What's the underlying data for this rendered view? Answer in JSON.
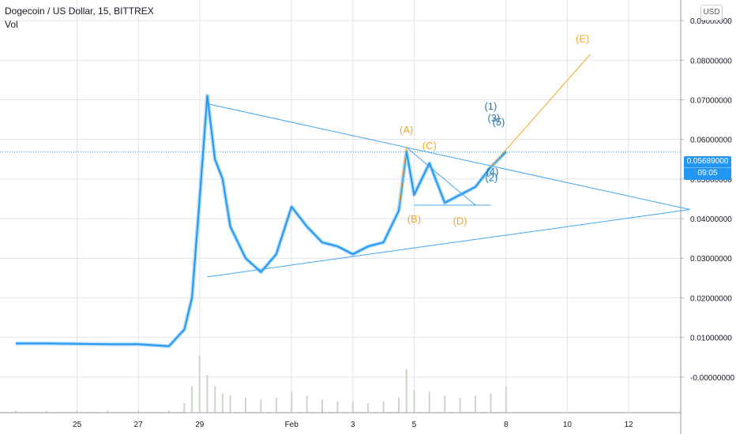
{
  "header": {
    "title": "Dogecoin / US Dollar, 15, BITTREX",
    "volume_label": "Vol",
    "currency_button": "USD"
  },
  "price_badge": {
    "price": "0.05689000",
    "countdown": "09:05"
  },
  "colors": {
    "price_line": "#2196f3",
    "price_smooth": "#90caf9",
    "trendline": "#42a5f5",
    "wave_abc": "#f5a623",
    "wave_impulse": "#1e78b4",
    "volume": "#c9d6c4",
    "grid": "#e1e3ea"
  },
  "chart_data": {
    "type": "line",
    "title": "Dogecoin / US Dollar, 15, BITTREX",
    "xlabel": "",
    "ylabel": "",
    "ylim": [
      -0.009,
      0.094
    ],
    "x_ticks": [
      "25",
      "27",
      "29",
      "Feb",
      "3",
      "5",
      "8",
      "10",
      "12"
    ],
    "y_ticks": [
      "0.09000000",
      "0.08000000",
      "0.07000000",
      "0.06000000",
      "0.05000000",
      "0.04000000",
      "0.03000000",
      "0.02000000",
      "0.01000000",
      "-0.00000000"
    ],
    "grid": true,
    "series": [
      {
        "x": [
          "Jan 23",
          "Jan 24",
          "Jan 25",
          "Jan 26",
          "Jan 27",
          "Jan 28",
          "Jan 28 12:00",
          "Jan 28 18:00",
          "Jan 29",
          "Jan 29 06:00",
          "Jan 29 12:00",
          "Jan 29 18:00",
          "Jan 30",
          "Jan 30 12:00",
          "Jan 31",
          "Jan 31 12:00",
          "Feb 1",
          "Feb 1 12:00",
          "Feb 2",
          "Feb 2 12:00",
          "Feb 3",
          "Feb 3 12:00",
          "Feb 4",
          "Feb 4 12:00",
          "Feb 4 18:00",
          "Feb 5",
          "Feb 5 12:00",
          "Feb 6",
          "Feb 6 12:00",
          "Feb 7",
          "Feb 7 12:00",
          "Feb 8"
        ],
        "values": [
          0.0085,
          0.0085,
          0.0084,
          0.0083,
          0.0083,
          0.0078,
          0.012,
          0.02,
          0.045,
          0.071,
          0.055,
          0.05,
          0.038,
          0.03,
          0.0265,
          0.031,
          0.043,
          0.038,
          0.034,
          0.033,
          0.031,
          0.033,
          0.034,
          0.042,
          0.057,
          0.046,
          0.054,
          0.044,
          0.046,
          0.048,
          0.053,
          0.0569
        ]
      }
    ],
    "volume": [
      1,
      1,
      1,
      1,
      1,
      1,
      5,
      14,
      30,
      20,
      14,
      10,
      9,
      8,
      7,
      8,
      11,
      9,
      7,
      6,
      6,
      5,
      6,
      8,
      23,
      12,
      11,
      9,
      8,
      9,
      10,
      14
    ],
    "annotations": {
      "wave_abc": [
        "(A)",
        "(B)",
        "(C)",
        "(D)",
        "(E)"
      ],
      "wave_impulse": [
        "(1)",
        "(2)",
        "(3)",
        "(4)",
        "(5)"
      ]
    }
  }
}
